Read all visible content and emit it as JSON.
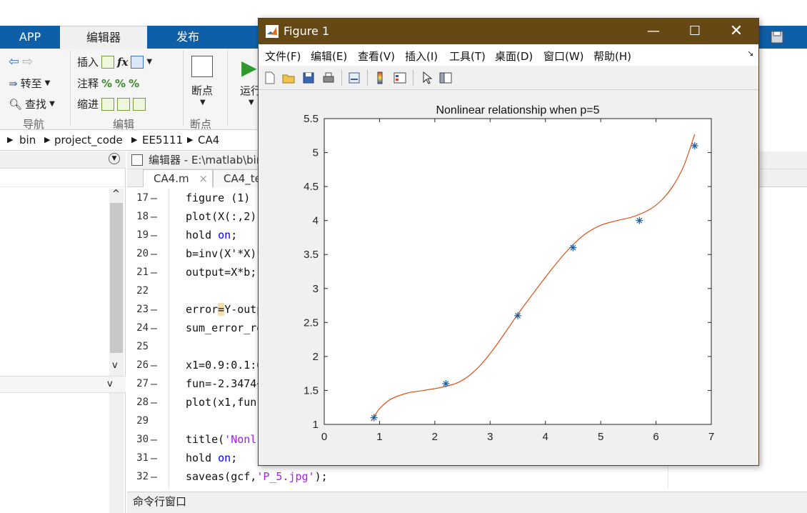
{
  "main": {
    "tabs": [
      "APP",
      "编辑器",
      "发布"
    ],
    "ribbon": {
      "nav": {
        "back_fwd": "",
        "goto": "转至",
        "find": "查找",
        "group": "导航"
      },
      "edit": {
        "insert": "插入",
        "comment": "注释",
        "indent": "缩进",
        "group": "编辑",
        "fx": "fx"
      },
      "breakpoint": {
        "label": "断点",
        "group": "断点"
      },
      "run": {
        "label": "运行"
      }
    },
    "breadcrumb": [
      "bin",
      "project_code",
      "EE5111",
      "CA4"
    ],
    "editor_title": "编辑器 - E:\\matlab\\bin",
    "file_tabs": [
      "CA4.m",
      "CA4_te"
    ],
    "command_window": "命令行窗口"
  },
  "code_lines": [
    {
      "n": "17",
      "dash": "—",
      "text": "figure (1)"
    },
    {
      "n": "18",
      "dash": "—",
      "text": "plot(X(:,2),"
    },
    {
      "n": "19",
      "dash": "—",
      "pre": "hold ",
      "kw": "on",
      "post": ";"
    },
    {
      "n": "20",
      "dash": "—",
      "text": "b=inv(X'*X)*"
    },
    {
      "n": "21",
      "dash": "—",
      "text": "output=X*b;"
    },
    {
      "n": "22",
      "dash": "",
      "text": ""
    },
    {
      "n": "23",
      "dash": "—",
      "pre": "error",
      "hl": "=",
      "post": "Y-outp"
    },
    {
      "n": "24",
      "dash": "—",
      "text": "sum_error_re"
    },
    {
      "n": "25",
      "dash": "",
      "text": ""
    },
    {
      "n": "26",
      "dash": "—",
      "text": "x1=0.9:0.1:6"
    },
    {
      "n": "27",
      "dash": "—",
      "text": "fun=-2.3474+"
    },
    {
      "n": "28",
      "dash": "—",
      "text": "plot(x1,fun)"
    },
    {
      "n": "29",
      "dash": "",
      "text": ""
    },
    {
      "n": "30",
      "dash": "—",
      "pre": "title(",
      "str": "'Nonl",
      "post": ""
    },
    {
      "n": "31",
      "dash": "—",
      "pre": "hold ",
      "kw": "on",
      "post": ";"
    },
    {
      "n": "32",
      "dash": "—",
      "pre": "saveas(gcf,",
      "str": "'P_5.jpg'",
      "post": ");"
    }
  ],
  "figure": {
    "title": "Figure 1",
    "menu": [
      "文件(F)",
      "编辑(E)",
      "查看(V)",
      "插入(I)",
      "工具(T)",
      "桌面(D)",
      "窗口(W)",
      "帮助(H)"
    ],
    "title_bar_color": "#664815"
  },
  "chart_data": {
    "type": "line",
    "title": "Nonlinear relationship when p=5",
    "xlim": [
      0,
      7
    ],
    "ylim": [
      1,
      5.5
    ],
    "xticks": [
      0,
      1,
      2,
      3,
      4,
      5,
      6,
      7
    ],
    "yticks": [
      1,
      1.5,
      2,
      2.5,
      3,
      3.5,
      4,
      4.5,
      5,
      5.5
    ],
    "series": [
      {
        "kind": "scatter",
        "marker": "*",
        "color": "#1f5f9e",
        "x": [
          0.9,
          2.2,
          3.5,
          4.5,
          5.7,
          6.7
        ],
        "y": [
          1.1,
          1.6,
          2.6,
          3.6,
          4.0,
          5.1
        ]
      },
      {
        "kind": "line",
        "color": "#d95319",
        "x": [
          0.85,
          0.9,
          1.0,
          1.2,
          1.5,
          1.8,
          2.2,
          2.5,
          2.8,
          3.1,
          3.5,
          3.8,
          4.1,
          4.4,
          4.7,
          5.0,
          5.3,
          5.6,
          5.9,
          6.1,
          6.3,
          6.5,
          6.7
        ],
        "y": [
          1.05,
          1.11,
          1.23,
          1.37,
          1.46,
          1.5,
          1.56,
          1.65,
          1.85,
          2.15,
          2.62,
          2.95,
          3.27,
          3.56,
          3.79,
          3.93,
          4.0,
          4.06,
          4.17,
          4.3,
          4.5,
          4.8,
          5.27
        ]
      }
    ]
  }
}
